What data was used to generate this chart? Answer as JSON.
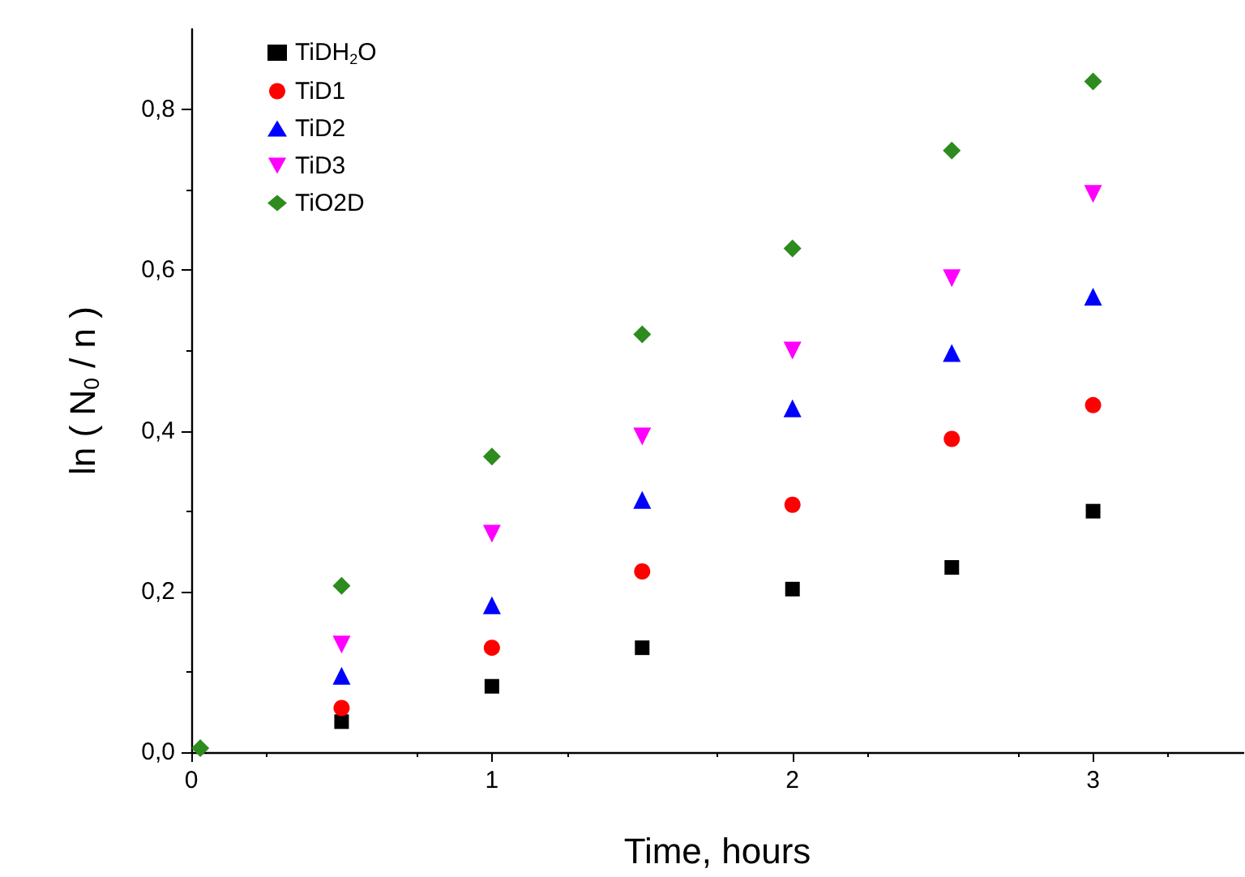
{
  "chart_data": {
    "type": "scatter",
    "xlabel": "Time, hours",
    "ylabel": "ln ( N$_{0}$ / n )",
    "x": [
      0.03,
      0.5,
      1.0,
      1.5,
      2.0,
      2.53,
      3.0
    ],
    "series": [
      {
        "name": "TiDH$_{2}$O",
        "color": "#000000",
        "marker": "square",
        "values": [
          null,
          0.038,
          0.082,
          0.13,
          0.203,
          0.23,
          0.3
        ]
      },
      {
        "name": "TiD1",
        "color": "#ff0000",
        "marker": "circle",
        "values": [
          null,
          0.055,
          0.13,
          0.225,
          0.308,
          0.39,
          0.432
        ]
      },
      {
        "name": "TiD2",
        "color": "#0000ff",
        "marker": "triangle",
        "values": [
          null,
          0.095,
          0.183,
          0.314,
          0.428,
          0.497,
          0.567
        ]
      },
      {
        "name": "TiD3",
        "color": "#ff00ff",
        "marker": "triangle-down",
        "values": [
          null,
          0.134,
          0.272,
          0.393,
          0.5,
          0.59,
          0.695
        ]
      },
      {
        "name": "TiO2D",
        "color": "#2e8b1e",
        "marker": "diamond",
        "values": [
          0.005,
          0.207,
          0.368,
          0.52,
          0.627,
          0.749,
          0.835
        ]
      }
    ],
    "xlim": [
      0,
      3.5
    ],
    "xticks": [
      0,
      1,
      2,
      3
    ],
    "ylim": [
      0,
      0.9
    ],
    "yticks": [
      {
        "value": 0,
        "label": "0,0"
      },
      {
        "value": 0.2,
        "label": "0,2"
      },
      {
        "value": 0.4,
        "label": "0,4"
      },
      {
        "value": 0.6,
        "label": "0,6"
      },
      {
        "value": 0.8,
        "label": "0,8"
      }
    ],
    "grid": false,
    "legend": "top left"
  }
}
